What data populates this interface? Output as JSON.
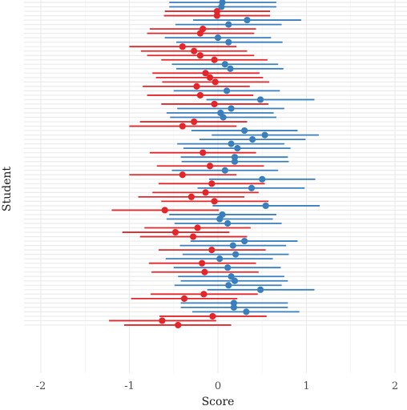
{
  "chart_data": {
    "type": "scatter",
    "subtype": "forest-plot",
    "title": "",
    "xlabel": "Score",
    "ylabel": "Student",
    "xlim": [
      -2.2,
      2.2
    ],
    "x_ticks": [
      "-2",
      "-1",
      "0",
      "1",
      "2"
    ],
    "y_tick_labels_shown": false,
    "grid": true,
    "legend": "none",
    "colors": {
      "positive": "#3a7fbd",
      "negative": "#e3262a"
    },
    "students": [
      {
        "estimate": 0.05,
        "lower": -0.55,
        "upper": 0.66
      },
      {
        "estimate": 0.04,
        "lower": -0.55,
        "upper": 0.66
      },
      {
        "estimate": -0.01,
        "lower": -0.6,
        "upper": 0.59
      },
      {
        "estimate": -0.01,
        "lower": -0.61,
        "upper": 0.59
      },
      {
        "estimate": 0.33,
        "lower": -0.28,
        "upper": 0.94
      },
      {
        "estimate": 0.12,
        "lower": -0.48,
        "upper": 0.72
      },
      {
        "estimate": -0.17,
        "lower": -0.77,
        "upper": 0.43
      },
      {
        "estimate": -0.2,
        "lower": -0.8,
        "upper": 0.41
      },
      {
        "estimate": 0.0,
        "lower": -0.6,
        "upper": 0.6
      },
      {
        "estimate": 0.12,
        "lower": -0.47,
        "upper": 0.73
      },
      {
        "estimate": -0.4,
        "lower": -1.0,
        "upper": 0.21
      },
      {
        "estimate": -0.27,
        "lower": -0.87,
        "upper": 0.33
      },
      {
        "estimate": -0.2,
        "lower": -0.8,
        "upper": 0.41
      },
      {
        "estimate": -0.04,
        "lower": -0.64,
        "upper": 0.56
      },
      {
        "estimate": 0.08,
        "lower": -0.52,
        "upper": 0.68
      },
      {
        "estimate": 0.14,
        "lower": -0.47,
        "upper": 0.74
      },
      {
        "estimate": -0.14,
        "lower": -0.74,
        "upper": 0.47
      },
      {
        "estimate": -0.09,
        "lower": -0.7,
        "upper": 0.51
      },
      {
        "estimate": -0.03,
        "lower": -0.63,
        "upper": 0.58
      },
      {
        "estimate": -0.24,
        "lower": -0.85,
        "upper": 0.36
      },
      {
        "estimate": 0.1,
        "lower": -0.5,
        "upper": 0.7
      },
      {
        "estimate": -0.2,
        "lower": -0.8,
        "upper": 0.4
      },
      {
        "estimate": 0.48,
        "lower": -0.13,
        "upper": 1.09
      },
      {
        "estimate": -0.04,
        "lower": -0.64,
        "upper": 0.57
      },
      {
        "estimate": 0.15,
        "lower": -0.46,
        "upper": 0.75
      },
      {
        "estimate": 0.03,
        "lower": -0.58,
        "upper": 0.63
      },
      {
        "estimate": 0.06,
        "lower": -0.54,
        "upper": 0.66
      },
      {
        "estimate": -0.27,
        "lower": -0.88,
        "upper": 0.33
      },
      {
        "estimate": -0.4,
        "lower": -1.0,
        "upper": 0.21
      },
      {
        "estimate": 0.3,
        "lower": -0.3,
        "upper": 0.9
      },
      {
        "estimate": 0.53,
        "lower": -0.07,
        "upper": 1.14
      },
      {
        "estimate": 0.39,
        "lower": -0.21,
        "upper": 0.99
      },
      {
        "estimate": 0.15,
        "lower": -0.46,
        "upper": 0.75
      },
      {
        "estimate": 0.22,
        "lower": -0.39,
        "upper": 0.82
      },
      {
        "estimate": -0.17,
        "lower": -0.77,
        "upper": 0.43
      },
      {
        "estimate": 0.19,
        "lower": -0.42,
        "upper": 0.79
      },
      {
        "estimate": 0.19,
        "lower": -0.41,
        "upper": 0.8
      },
      {
        "estimate": -0.09,
        "lower": -0.69,
        "upper": 0.52
      },
      {
        "estimate": 0.08,
        "lower": -0.52,
        "upper": 0.68
      },
      {
        "estimate": -0.4,
        "lower": -1.0,
        "upper": 0.21
      },
      {
        "estimate": 0.5,
        "lower": -0.1,
        "upper": 1.1
      },
      {
        "estimate": -0.07,
        "lower": -0.67,
        "upper": 0.53
      },
      {
        "estimate": 0.38,
        "lower": -0.23,
        "upper": 0.98
      },
      {
        "estimate": -0.14,
        "lower": -0.74,
        "upper": 0.46
      },
      {
        "estimate": -0.3,
        "lower": -0.9,
        "upper": 0.3
      },
      {
        "estimate": -0.04,
        "lower": -0.64,
        "upper": 0.57
      },
      {
        "estimate": 0.54,
        "lower": -0.06,
        "upper": 1.15
      },
      {
        "estimate": -0.6,
        "lower": -1.2,
        "upper": 0.01
      },
      {
        "estimate": 0.05,
        "lower": -0.55,
        "upper": 0.66
      },
      {
        "estimate": 0.02,
        "lower": -0.58,
        "upper": 0.62
      },
      {
        "estimate": 0.11,
        "lower": -0.49,
        "upper": 0.72
      },
      {
        "estimate": -0.23,
        "lower": -0.83,
        "upper": 0.37
      },
      {
        "estimate": -0.48,
        "lower": -1.08,
        "upper": 0.13
      },
      {
        "estimate": -0.28,
        "lower": -0.88,
        "upper": 0.33
      },
      {
        "estimate": 0.3,
        "lower": -0.31,
        "upper": 0.9
      },
      {
        "estimate": 0.17,
        "lower": -0.43,
        "upper": 0.77
      },
      {
        "estimate": -0.07,
        "lower": -0.67,
        "upper": 0.54
      },
      {
        "estimate": 0.2,
        "lower": -0.4,
        "upper": 0.8
      },
      {
        "estimate": 0.02,
        "lower": -0.59,
        "upper": 0.62
      },
      {
        "estimate": -0.18,
        "lower": -0.78,
        "upper": 0.43
      },
      {
        "estimate": 0.11,
        "lower": -0.5,
        "upper": 0.71
      },
      {
        "estimate": -0.15,
        "lower": -0.75,
        "upper": 0.46
      },
      {
        "estimate": 0.15,
        "lower": -0.45,
        "upper": 0.75
      },
      {
        "estimate": 0.19,
        "lower": -0.42,
        "upper": 0.79
      },
      {
        "estimate": 0.12,
        "lower": -0.49,
        "upper": 0.72
      },
      {
        "estimate": 0.48,
        "lower": -0.12,
        "upper": 1.09
      },
      {
        "estimate": -0.16,
        "lower": -0.76,
        "upper": 0.45
      },
      {
        "estimate": -0.38,
        "lower": -0.98,
        "upper": 0.22
      },
      {
        "estimate": 0.18,
        "lower": -0.42,
        "upper": 0.79
      },
      {
        "estimate": 0.18,
        "lower": -0.42,
        "upper": 0.79
      },
      {
        "estimate": 0.32,
        "lower": -0.29,
        "upper": 0.92
      },
      {
        "estimate": -0.06,
        "lower": -0.66,
        "upper": 0.55
      },
      {
        "estimate": -0.63,
        "lower": -1.23,
        "upper": -0.02
      },
      {
        "estimate": -0.45,
        "lower": -1.06,
        "upper": 0.15
      }
    ]
  }
}
